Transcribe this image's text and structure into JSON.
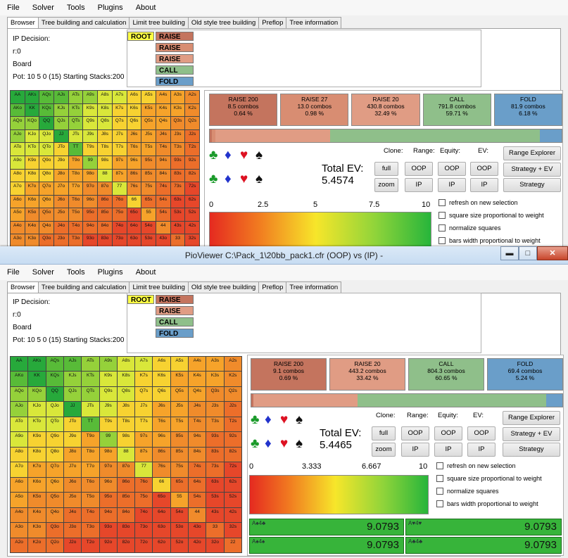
{
  "colors": {
    "raise_big": "#c4745e",
    "raise_mid": "#d88d72",
    "raise_small": "#e09c84",
    "call": "#8fbf8a",
    "fold": "#6a9ec9",
    "root": "#ffff44",
    "matrix": [
      "#27a93b",
      "#58bb38",
      "#95d13a",
      "#d9e73a",
      "#f7d231",
      "#f6a32a",
      "#f08b2b",
      "#ec6e2a",
      "#e6472a"
    ]
  },
  "menu": [
    "File",
    "Solver",
    "Tools",
    "Plugins",
    "About"
  ],
  "tabs": [
    "Browser",
    "Tree building and calculation",
    "Limit tree building",
    "Old style tree building",
    "Preflop",
    "Tree information"
  ],
  "hands": [
    [
      "AA",
      "AKs",
      "AQs",
      "AJs",
      "ATs",
      "A9s",
      "A8s",
      "A7s",
      "A6s",
      "A5s",
      "A4s",
      "A3s",
      "A2s"
    ],
    [
      "AKo",
      "KK",
      "KQs",
      "KJs",
      "KTs",
      "K9s",
      "K8s",
      "K7s",
      "K6s",
      "K5s",
      "K4s",
      "K3s",
      "K2s"
    ],
    [
      "AQo",
      "KQo",
      "QQ",
      "QJs",
      "QTs",
      "Q9s",
      "Q8s",
      "Q7s",
      "Q6s",
      "Q5s",
      "Q4s",
      "Q3s",
      "Q2s"
    ],
    [
      "AJo",
      "KJo",
      "QJo",
      "JJ",
      "JTs",
      "J9s",
      "J8s",
      "J7s",
      "J6s",
      "J5s",
      "J4s",
      "J3s",
      "J2s"
    ],
    [
      "ATo",
      "KTo",
      "QTo",
      "JTo",
      "TT",
      "T9s",
      "T8s",
      "T7s",
      "T6s",
      "T5s",
      "T4s",
      "T3s",
      "T2s"
    ],
    [
      "A9o",
      "K9o",
      "Q9o",
      "J9o",
      "T9o",
      "99",
      "98s",
      "97s",
      "96s",
      "95s",
      "94s",
      "93s",
      "92s"
    ],
    [
      "A8o",
      "K8o",
      "Q8o",
      "J8o",
      "T8o",
      "98o",
      "88",
      "87s",
      "86s",
      "85s",
      "84s",
      "83s",
      "82s"
    ],
    [
      "A7o",
      "K7o",
      "Q7o",
      "J7o",
      "T7o",
      "97o",
      "87o",
      "77",
      "76s",
      "75s",
      "74s",
      "73s",
      "72s"
    ],
    [
      "A6o",
      "K6o",
      "Q6o",
      "J6o",
      "T6o",
      "96o",
      "86o",
      "76o",
      "66",
      "65s",
      "64s",
      "63s",
      "62s"
    ],
    [
      "A5o",
      "K5o",
      "Q5o",
      "J5o",
      "T5o",
      "95o",
      "85o",
      "75o",
      "65o",
      "55",
      "54s",
      "53s",
      "52s"
    ],
    [
      "A4o",
      "K4o",
      "Q4o",
      "J4o",
      "T4o",
      "94o",
      "84o",
      "74o",
      "64o",
      "54o",
      "44",
      "43s",
      "42s"
    ],
    [
      "A3o",
      "K3o",
      "Q3o",
      "J3o",
      "T3o",
      "93o",
      "83o",
      "73o",
      "63o",
      "53o",
      "43o",
      "33",
      "32s"
    ],
    [
      "A2o",
      "K2o",
      "Q2o",
      "J2o",
      "T2o",
      "92o",
      "82o",
      "72o",
      "62o",
      "52o",
      "42o",
      "32o",
      "22"
    ]
  ],
  "win1": {
    "info": {
      "decision": "IP Decision:",
      "round": "r:0",
      "board": "Board",
      "pot": "Pot: 10 5 0 (15) Starting Stacks:200"
    },
    "actions": [
      "ROOT",
      "RAISE 200",
      "RAISE 27",
      "RAISE 20",
      "CALL",
      "FOLD"
    ],
    "strategy": [
      {
        "name": "RAISE 200",
        "combos": "8.5 combos",
        "pct": "0.64 %",
        "share": 0.0064
      },
      {
        "name": "RAISE 27",
        "combos": "13.0 combos",
        "pct": "0.98 %",
        "share": 0.0098
      },
      {
        "name": "RAISE 20",
        "combos": "430.8 combos",
        "pct": "32.49 %",
        "share": 0.3249
      },
      {
        "name": "CALL",
        "combos": "791.8 combos",
        "pct": "59.71 %",
        "share": 0.5971
      },
      {
        "name": "FOLD",
        "combos": "81.9 combos",
        "pct": "6.18 %",
        "share": 0.0618
      }
    ],
    "total_ev_label": "Total EV:",
    "total_ev": "5.4574",
    "scale": [
      "0",
      "2.5",
      "5",
      "7.5",
      "10"
    ],
    "rows_visible": 12
  },
  "win2": {
    "title": "PioViewer C:\\Pack_1\\20bb_pack1.cfr (OOP) vs (IP) -",
    "info": {
      "decision": "IP Decision:",
      "round": "r:0",
      "board": "Board",
      "pot": "Pot: 10 5 0 (15) Starting Stacks:200"
    },
    "actions": [
      "ROOT",
      "RAISE 200",
      "RAISE 20",
      "CALL",
      "FOLD"
    ],
    "strategy": [
      {
        "name": "RAISE 200",
        "combos": "9.1 combos",
        "pct": "0.69 %",
        "share": 0.0069
      },
      {
        "name": "RAISE 20",
        "combos": "443.2 combos",
        "pct": "33.42 %",
        "share": 0.3342
      },
      {
        "name": "CALL",
        "combos": "804.3 combos",
        "pct": "60.65 %",
        "share": 0.6065
      },
      {
        "name": "FOLD",
        "combos": "69.4 combos",
        "pct": "5.24 %",
        "share": 0.0524
      }
    ],
    "total_ev_label": "Total EV:",
    "total_ev": "5.4465",
    "scale": [
      "0",
      "3.333",
      "6.667",
      "10"
    ],
    "combos": [
      {
        "cards": "A♠4♣",
        "ev": "9.0793"
      },
      {
        "cards": "A♥4♥",
        "ev": "9.0793"
      },
      {
        "cards": "A♠4♠",
        "ev": "9.0793"
      },
      {
        "cards": "A♣4♣",
        "ev": "9.0793"
      }
    ]
  },
  "controls": {
    "clone": "Clone:",
    "range": "Range:",
    "equity": "Equity:",
    "ev": "EV:",
    "full": "full",
    "zoom": "zoom",
    "oop": "OOP",
    "ip": "IP",
    "range_explorer": "Range Explorer",
    "strategy_ev": "Strategy + EV",
    "strategy": "Strategy",
    "checks": [
      "refresh on new selection",
      "square size proportional to weight",
      "normalize squares",
      "bars width proportional to weight"
    ]
  },
  "win_buttons": {
    "minimize": "▬",
    "maximize": "□",
    "close": "✕"
  }
}
